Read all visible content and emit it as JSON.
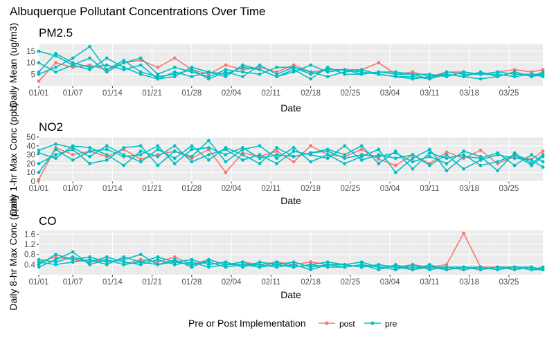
{
  "title": "Albuquerque Pollutant Concentrations Over Time",
  "legend": {
    "title": "Pre or Post Implementation",
    "entries": [
      {
        "label": "post",
        "color": "#F8766D"
      },
      {
        "label": "pre",
        "color": "#00BFC4"
      }
    ]
  },
  "chart_data": [
    {
      "type": "line",
      "title": "PM2.5",
      "xlabel": "Date",
      "ylabel": "Daily Mean (ug/m3)",
      "xlim": [
        "01/01",
        "03/31"
      ],
      "ylim": [
        0,
        18
      ],
      "yticks": [
        5,
        10,
        15
      ],
      "xticks": [
        "01/01",
        "01/07",
        "01/14",
        "01/21",
        "01/28",
        "02/04",
        "02/11",
        "02/18",
        "02/25",
        "03/04",
        "03/11",
        "03/18",
        "03/25"
      ],
      "x": [
        "01/01",
        "01/04",
        "01/07",
        "01/10",
        "01/13",
        "01/16",
        "01/19",
        "01/22",
        "01/25",
        "01/28",
        "01/31",
        "02/03",
        "02/06",
        "02/09",
        "02/12",
        "02/15",
        "02/18",
        "02/21",
        "02/24",
        "02/27",
        "03/02",
        "03/05",
        "03/08",
        "03/11",
        "03/14",
        "03/17",
        "03/20",
        "03/23",
        "03/26",
        "03/29",
        "03/31"
      ],
      "series": [
        {
          "name": "post",
          "values": [
            2,
            10,
            8,
            9,
            7,
            10,
            11,
            8,
            12,
            7,
            5,
            9,
            7,
            8,
            6,
            9,
            6,
            7,
            7,
            7,
            10,
            5,
            6,
            4,
            6,
            6,
            5,
            6,
            7,
            6,
            7
          ]
        },
        {
          "name": "pre",
          "values": [
            15,
            13,
            9,
            12,
            6,
            10,
            12,
            5,
            8,
            6,
            4,
            7,
            6,
            5,
            8,
            8,
            6,
            4,
            6,
            7,
            5,
            4,
            4,
            3,
            5,
            4,
            6,
            4,
            6,
            4,
            5
          ]
        },
        {
          "name": "pre",
          "values": [
            6,
            14,
            10,
            8,
            9,
            7,
            9,
            3,
            6,
            4,
            6,
            5,
            8,
            7,
            4,
            6,
            9,
            6,
            7,
            5,
            6,
            6,
            5,
            5,
            4,
            6,
            5,
            5,
            4,
            5,
            4
          ]
        },
        {
          "name": "pre",
          "values": [
            5,
            8,
            12,
            17,
            7,
            11,
            6,
            4,
            5,
            7,
            3,
            6,
            4,
            9,
            5,
            8,
            5,
            7,
            7,
            6,
            5,
            4,
            3,
            4,
            5,
            4,
            3,
            4,
            6,
            4,
            6
          ]
        },
        {
          "name": "pre",
          "values": [
            10,
            6,
            9,
            7,
            12,
            8,
            5,
            3,
            4,
            8,
            6,
            4,
            9,
            7,
            4,
            7,
            3,
            8,
            5,
            5,
            6,
            5,
            5,
            3,
            6,
            5,
            5,
            6,
            5,
            5,
            5
          ]
        }
      ]
    },
    {
      "type": "line",
      "title": "NO2",
      "xlabel": "Date",
      "ylabel": "Daily 1-hr Max Conc (ppb)",
      "xlim": [
        "01/01",
        "03/31"
      ],
      "ylim": [
        0,
        50
      ],
      "yticks": [
        0,
        10,
        20,
        30,
        40,
        50
      ],
      "xticks": [
        "01/01",
        "01/07",
        "01/14",
        "01/21",
        "01/28",
        "02/04",
        "02/11",
        "02/18",
        "02/25",
        "03/04",
        "03/11",
        "03/18",
        "03/25"
      ],
      "x": [
        "01/01",
        "01/04",
        "01/07",
        "01/10",
        "01/13",
        "01/16",
        "01/19",
        "01/22",
        "01/25",
        "01/28",
        "01/31",
        "02/03",
        "02/06",
        "02/09",
        "02/12",
        "02/15",
        "02/18",
        "02/21",
        "02/24",
        "02/27",
        "03/02",
        "03/05",
        "03/08",
        "03/11",
        "03/14",
        "03/17",
        "03/20",
        "03/23",
        "03/26",
        "03/29",
        "03/31"
      ],
      "series": [
        {
          "name": "post",
          "values": [
            2,
            38,
            30,
            34,
            28,
            36,
            25,
            30,
            34,
            26,
            36,
            10,
            32,
            28,
            34,
            22,
            40,
            30,
            28,
            36,
            25,
            18,
            30,
            20,
            33,
            26,
            35,
            20,
            28,
            25,
            34
          ]
        },
        {
          "name": "pre",
          "values": [
            35,
            42,
            38,
            28,
            40,
            30,
            22,
            36,
            26,
            40,
            24,
            38,
            30,
            20,
            38,
            28,
            32,
            36,
            30,
            40,
            20,
            34,
            14,
            32,
            26,
            30,
            18,
            22,
            30,
            18,
            28
          ]
        },
        {
          "name": "pre",
          "values": [
            20,
            30,
            36,
            20,
            24,
            38,
            40,
            18,
            34,
            28,
            46,
            22,
            36,
            40,
            26,
            38,
            22,
            30,
            20,
            28,
            36,
            10,
            26,
            36,
            12,
            28,
            26,
            32,
            18,
            30,
            22
          ]
        },
        {
          "name": "pre",
          "values": [
            32,
            26,
            40,
            38,
            30,
            18,
            34,
            28,
            40,
            22,
            30,
            36,
            24,
            30,
            20,
            34,
            30,
            26,
            40,
            24,
            30,
            26,
            30,
            18,
            30,
            14,
            24,
            30,
            26,
            24,
            16
          ]
        },
        {
          "name": "pre",
          "values": [
            10,
            36,
            24,
            34,
            36,
            28,
            30,
            40,
            20,
            36,
            38,
            30,
            38,
            26,
            30,
            28,
            32,
            34,
            26,
            30,
            28,
            32,
            22,
            28,
            20,
            34,
            28,
            12,
            32,
            20,
            30
          ]
        }
      ]
    },
    {
      "type": "line",
      "title": "CO",
      "xlabel": "Date",
      "ylabel": "Daily 8-hr Max Conc (ppm)",
      "xlim": [
        "01/01",
        "03/31"
      ],
      "ylim": [
        0,
        1.75
      ],
      "yticks": [
        0.4,
        0.8,
        1.2,
        1.6
      ],
      "xticks": [
        "01/01",
        "01/07",
        "01/14",
        "01/21",
        "01/28",
        "02/04",
        "02/11",
        "02/18",
        "02/25",
        "03/04",
        "03/11",
        "03/18",
        "03/25"
      ],
      "x": [
        "01/01",
        "01/04",
        "01/07",
        "01/10",
        "01/13",
        "01/16",
        "01/19",
        "01/22",
        "01/25",
        "01/28",
        "01/31",
        "02/03",
        "02/06",
        "02/09",
        "02/12",
        "02/15",
        "02/18",
        "02/21",
        "02/24",
        "02/27",
        "03/02",
        "03/05",
        "03/08",
        "03/11",
        "03/14",
        "03/17",
        "03/20",
        "03/23",
        "03/26",
        "03/29",
        "03/31"
      ],
      "series": [
        {
          "name": "post",
          "values": [
            0.5,
            0.7,
            0.6,
            0.5,
            0.6,
            0.4,
            0.6,
            0.5,
            0.7,
            0.4,
            0.6,
            0.4,
            0.5,
            0.4,
            0.5,
            0.4,
            0.5,
            0.4,
            0.4,
            0.3,
            0.4,
            0.3,
            0.4,
            0.3,
            0.4,
            1.64,
            0.3,
            0.3,
            0.3,
            0.2,
            0.2
          ]
        },
        {
          "name": "pre",
          "values": [
            0.4,
            0.8,
            0.6,
            0.7,
            0.5,
            0.6,
            0.8,
            0.4,
            0.5,
            0.6,
            0.4,
            0.5,
            0.3,
            0.5,
            0.4,
            0.5,
            0.3,
            0.4,
            0.4,
            0.5,
            0.3,
            0.3,
            0.3,
            0.3,
            0.3,
            0.2,
            0.3,
            0.2,
            0.3,
            0.2,
            0.2
          ]
        },
        {
          "name": "pre",
          "values": [
            0.6,
            0.5,
            0.7,
            0.5,
            0.7,
            0.5,
            0.4,
            0.6,
            0.4,
            0.5,
            0.3,
            0.4,
            0.4,
            0.3,
            0.4,
            0.3,
            0.4,
            0.3,
            0.3,
            0.4,
            0.2,
            0.4,
            0.2,
            0.3,
            0.2,
            0.3,
            0.2,
            0.3,
            0.2,
            0.3,
            0.2
          ]
        },
        {
          "name": "pre",
          "values": [
            0.3,
            0.6,
            0.9,
            0.4,
            0.6,
            0.4,
            0.5,
            0.7,
            0.5,
            0.4,
            0.5,
            0.3,
            0.4,
            0.4,
            0.3,
            0.4,
            0.2,
            0.4,
            0.3,
            0.4,
            0.3,
            0.2,
            0.4,
            0.2,
            0.3,
            0.3,
            0.2,
            0.3,
            0.3,
            0.2,
            0.3
          ]
        },
        {
          "name": "pre",
          "values": [
            0.5,
            0.4,
            0.5,
            0.6,
            0.4,
            0.7,
            0.5,
            0.4,
            0.6,
            0.3,
            0.6,
            0.4,
            0.5,
            0.3,
            0.5,
            0.3,
            0.4,
            0.5,
            0.4,
            0.3,
            0.4,
            0.3,
            0.2,
            0.4,
            0.2,
            0.3,
            0.3,
            0.2,
            0.3,
            0.3,
            0.2
          ]
        }
      ]
    }
  ]
}
